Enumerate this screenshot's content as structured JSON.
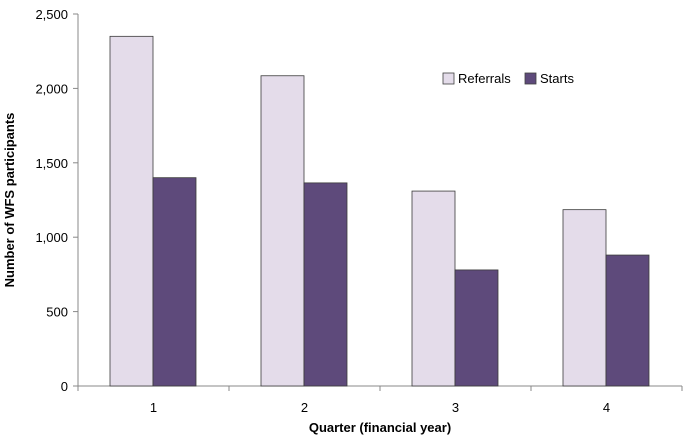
{
  "chart_data": {
    "type": "bar",
    "title": "",
    "xlabel": "Quarter (financial year)",
    "ylabel": "Number of WFS participants",
    "categories": [
      "1",
      "2",
      "3",
      "4"
    ],
    "series": [
      {
        "name": "Referrals",
        "values": [
          2350,
          2085,
          1310,
          1185
        ],
        "color": "#e4dcea"
      },
      {
        "name": "Starts",
        "values": [
          1400,
          1365,
          780,
          880
        ],
        "color": "#5e4a7b"
      }
    ],
    "ylim": [
      0,
      2500
    ],
    "yticks": [
      0,
      500,
      1000,
      1500,
      2000,
      2500
    ],
    "ytick_labels": [
      "0",
      "500",
      "1,000",
      "1,500",
      "2,000",
      "2,500"
    ],
    "grid": false,
    "legend_position": "top-right"
  }
}
